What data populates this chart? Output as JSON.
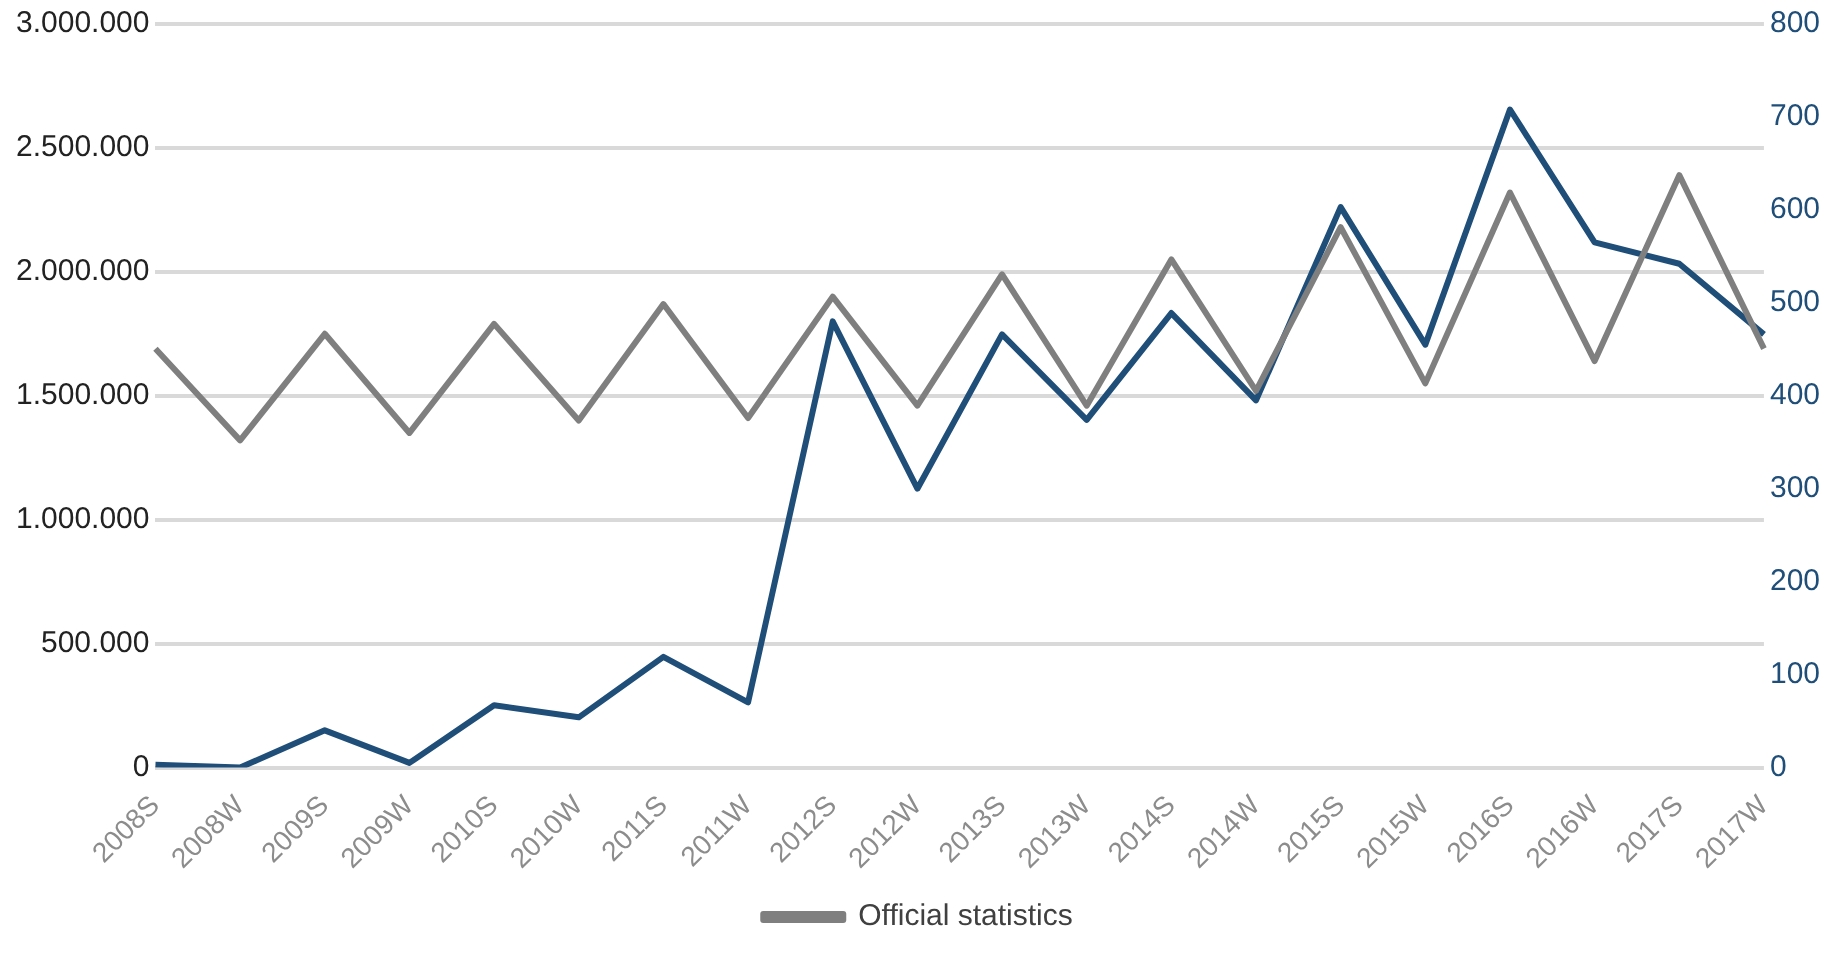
{
  "chart_data": {
    "type": "line",
    "categories": [
      "2008S",
      "2008W",
      "2009S",
      "2009W",
      "2010S",
      "2010W",
      "2011S",
      "2011W",
      "2012S",
      "2012W",
      "2013S",
      "2013W",
      "2014S",
      "2014W",
      "2015S",
      "2015W",
      "2016S",
      "2016W",
      "2017S",
      "2017W"
    ],
    "series": [
      {
        "name": "Official statistics",
        "color": "#7f7f7f",
        "values": [
          1690000,
          1320000,
          1750000,
          1350000,
          1790000,
          1400000,
          1870000,
          1410000,
          1900000,
          1460000,
          1990000,
          1460000,
          2050000,
          1520000,
          2180000,
          1550000,
          2320000,
          1640000,
          2390000,
          1690000
        ]
      },
      {
        "color": "#1f4e79",
        "axis": "y2",
        "values": [
          3,
          0,
          40,
          5,
          67,
          54,
          119,
          70,
          480,
          300,
          466,
          374,
          489,
          395,
          603,
          455,
          708,
          565,
          542,
          466
        ]
      }
    ],
    "ylim": [
      0,
      3000000
    ],
    "yticks": [
      {
        "value": 0,
        "label": "0"
      },
      {
        "value": 500000,
        "label": "500.000"
      },
      {
        "value": 1000000,
        "label": "1.000.000"
      },
      {
        "value": 1500000,
        "label": "1.500.000"
      },
      {
        "value": 2000000,
        "label": "2.000.000"
      },
      {
        "value": 2500000,
        "label": "2.500.000"
      },
      {
        "value": 3000000,
        "label": "3.000.000"
      }
    ],
    "y2lim": [
      0,
      800
    ],
    "y2ticks": [
      0,
      100,
      200,
      300,
      400,
      500,
      600,
      700,
      800
    ],
    "grid": "y",
    "legend": "bottom",
    "marker": "none",
    "line_style": "solid"
  }
}
